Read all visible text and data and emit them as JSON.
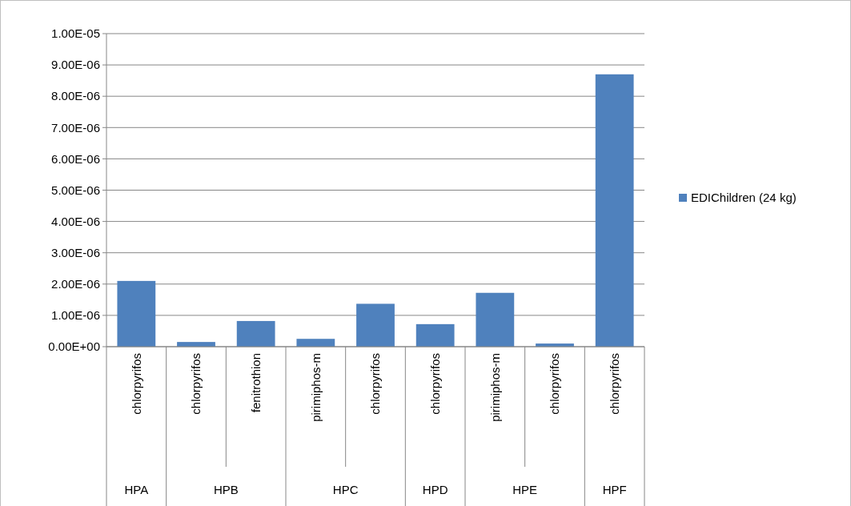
{
  "chart_data": {
    "type": "bar",
    "categories": [
      "chlorpyrifos",
      "chlorpyrifos",
      "fenitrothion",
      "pirimiphos-m",
      "chlorpyrifos",
      "chlorpyrifos",
      "pirimiphos-m",
      "chlorpyrifos",
      "chlorpyrifos"
    ],
    "series": [
      {
        "name": "EDIChildren (24 kg)",
        "color": "#4f81bd",
        "values": [
          2.1e-06,
          1.5e-07,
          8.2e-07,
          2.5e-07,
          1.37e-06,
          7.2e-07,
          1.72e-06,
          1e-07,
          8.7e-06
        ]
      }
    ],
    "annotations": [
      "HPA",
      "HPB",
      "HPC",
      "HPD",
      "HPE",
      "HPF"
    ],
    "ylim": [
      0,
      1e-05
    ],
    "yticks": [
      {
        "value": 0,
        "label": "0.00E+00"
      },
      {
        "value": 1e-06,
        "label": "1.00E-06"
      },
      {
        "value": 2e-06,
        "label": "2.00E-06"
      },
      {
        "value": 3e-06,
        "label": "3.00E-06"
      },
      {
        "value": 4e-06,
        "label": "4.00E-06"
      },
      {
        "value": 5e-06,
        "label": "5.00E-06"
      },
      {
        "value": 6e-06,
        "label": "6.00E-06"
      },
      {
        "value": 7e-06,
        "label": "7.00E-06"
      },
      {
        "value": 8e-06,
        "label": "8.00E-06"
      },
      {
        "value": 9e-06,
        "label": "9.00E-06"
      },
      {
        "value": 1e-05,
        "label": "1.00E-05"
      }
    ],
    "grid": "y",
    "legend": "right"
  }
}
